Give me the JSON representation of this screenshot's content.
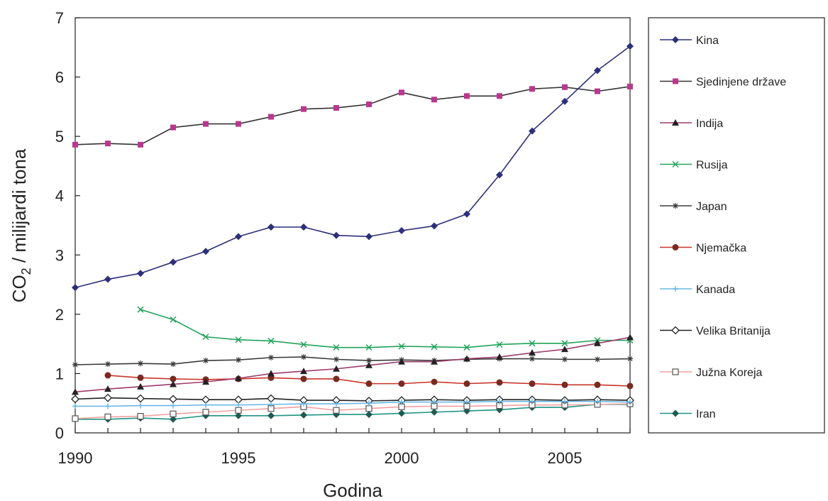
{
  "chart_data": {
    "type": "line",
    "xlabel": "Godina",
    "ylabel_main": "CO",
    "ylabel_sub": "2",
    "ylabel_rest": " / milijardi tona",
    "xlim": [
      1990,
      2007
    ],
    "ylim": [
      0,
      7
    ],
    "x_ticks": [
      1990,
      1995,
      2000,
      2005
    ],
    "y_ticks": [
      0,
      1,
      2,
      3,
      4,
      5,
      6,
      7
    ],
    "grid": false,
    "legend_position": "right",
    "series": [
      {
        "name": "Kina",
        "color": "#2c2f7a",
        "marker": "diamond",
        "x": [
          1990,
          1991,
          1992,
          1993,
          1994,
          1995,
          1996,
          1997,
          1998,
          1999,
          2000,
          2001,
          2002,
          2003,
          2004,
          2005,
          2006,
          2007
        ],
        "values": [
          2.45,
          2.59,
          2.69,
          2.88,
          3.06,
          3.31,
          3.47,
          3.47,
          3.33,
          3.31,
          3.41,
          3.49,
          3.69,
          4.35,
          5.09,
          5.59,
          6.11,
          6.52
        ]
      },
      {
        "name": "Sjedinjene države",
        "color": "#b8388e",
        "line_color": "#333333",
        "marker": "square",
        "x": [
          1990,
          1991,
          1992,
          1993,
          1994,
          1995,
          1996,
          1997,
          1998,
          1999,
          2000,
          2001,
          2002,
          2003,
          2004,
          2005,
          2006,
          2007
        ],
        "values": [
          4.86,
          4.88,
          4.86,
          5.15,
          5.21,
          5.21,
          5.33,
          5.46,
          5.48,
          5.54,
          5.74,
          5.62,
          5.68,
          5.68,
          5.8,
          5.83,
          5.76,
          5.84
        ]
      },
      {
        "name": "Indija",
        "color": "#9c3a6b",
        "marker_color": "#222222",
        "marker": "triangle",
        "x": [
          1990,
          1991,
          1992,
          1993,
          1994,
          1995,
          1996,
          1997,
          1998,
          1999,
          2000,
          2001,
          2002,
          2003,
          2004,
          2005,
          2006,
          2007
        ],
        "values": [
          0.69,
          0.74,
          0.78,
          0.82,
          0.86,
          0.92,
          1.0,
          1.04,
          1.08,
          1.14,
          1.2,
          1.2,
          1.25,
          1.28,
          1.35,
          1.41,
          1.51,
          1.61
        ]
      },
      {
        "name": "Rusija",
        "color": "#22a35a",
        "marker": "x",
        "x": [
          1992,
          1993,
          1994,
          1995,
          1996,
          1997,
          1998,
          1999,
          2000,
          2001,
          2002,
          2003,
          2004,
          2005,
          2006,
          2007
        ],
        "values": [
          2.08,
          1.91,
          1.62,
          1.57,
          1.55,
          1.49,
          1.44,
          1.44,
          1.46,
          1.45,
          1.44,
          1.49,
          1.51,
          1.51,
          1.56,
          1.56
        ]
      },
      {
        "name": "Japan",
        "color": "#3a3a3a",
        "marker": "star",
        "x": [
          1990,
          1991,
          1992,
          1993,
          1994,
          1995,
          1996,
          1997,
          1998,
          1999,
          2000,
          2001,
          2002,
          2003,
          2004,
          2005,
          2006,
          2007
        ],
        "values": [
          1.15,
          1.16,
          1.17,
          1.16,
          1.22,
          1.23,
          1.27,
          1.28,
          1.24,
          1.22,
          1.23,
          1.22,
          1.24,
          1.25,
          1.25,
          1.24,
          1.24,
          1.25
        ]
      },
      {
        "name": "Njemačka",
        "color": "#c8342a",
        "marker_color": "#7a2a20",
        "marker": "circle",
        "x": [
          1991,
          1992,
          1993,
          1994,
          1995,
          1996,
          1997,
          1998,
          1999,
          2000,
          2001,
          2002,
          2003,
          2004,
          2005,
          2006,
          2007
        ],
        "values": [
          0.97,
          0.93,
          0.91,
          0.9,
          0.91,
          0.93,
          0.91,
          0.91,
          0.83,
          0.83,
          0.86,
          0.83,
          0.85,
          0.83,
          0.81,
          0.81,
          0.79
        ]
      },
      {
        "name": "Kanada",
        "color": "#6ab8e4",
        "marker": "plus",
        "x": [
          1990,
          1991,
          1992,
          1993,
          1994,
          1995,
          1996,
          1997,
          1998,
          1999,
          2000,
          2001,
          2002,
          2003,
          2004,
          2005,
          2006,
          2007
        ],
        "values": [
          0.45,
          0.45,
          0.46,
          0.46,
          0.47,
          0.47,
          0.48,
          0.49,
          0.49,
          0.5,
          0.52,
          0.52,
          0.52,
          0.53,
          0.53,
          0.53,
          0.53,
          0.52
        ]
      },
      {
        "name": "Velika Britanija",
        "color": "#222222",
        "marker": "diamond-open",
        "x": [
          1990,
          1991,
          1992,
          1993,
          1994,
          1995,
          1996,
          1997,
          1998,
          1999,
          2000,
          2001,
          2002,
          2003,
          2004,
          2005,
          2006,
          2007
        ],
        "values": [
          0.57,
          0.59,
          0.58,
          0.57,
          0.56,
          0.56,
          0.58,
          0.55,
          0.55,
          0.54,
          0.55,
          0.56,
          0.55,
          0.56,
          0.56,
          0.55,
          0.56,
          0.55
        ]
      },
      {
        "name": "Južna Koreja",
        "color": "#f0a0a0",
        "marker_color": "#555555",
        "marker": "square-open",
        "x": [
          1990,
          1991,
          1992,
          1993,
          1994,
          1995,
          1996,
          1997,
          1998,
          1999,
          2000,
          2001,
          2002,
          2003,
          2004,
          2005,
          2006,
          2007
        ],
        "values": [
          0.24,
          0.27,
          0.28,
          0.32,
          0.35,
          0.38,
          0.41,
          0.44,
          0.38,
          0.41,
          0.44,
          0.45,
          0.45,
          0.46,
          0.47,
          0.47,
          0.48,
          0.49
        ]
      },
      {
        "name": "Iran",
        "color": "#1e9483",
        "marker_color": "#1f5a52",
        "marker": "diamond",
        "x": [
          1990,
          1991,
          1992,
          1993,
          1994,
          1995,
          1996,
          1997,
          1998,
          1999,
          2000,
          2001,
          2002,
          2003,
          2004,
          2005,
          2006,
          2007
        ],
        "values": [
          0.23,
          0.23,
          0.25,
          0.23,
          0.29,
          0.29,
          0.29,
          0.3,
          0.31,
          0.31,
          0.33,
          0.35,
          0.37,
          0.39,
          0.43,
          0.43,
          0.48,
          0.48
        ]
      }
    ]
  }
}
